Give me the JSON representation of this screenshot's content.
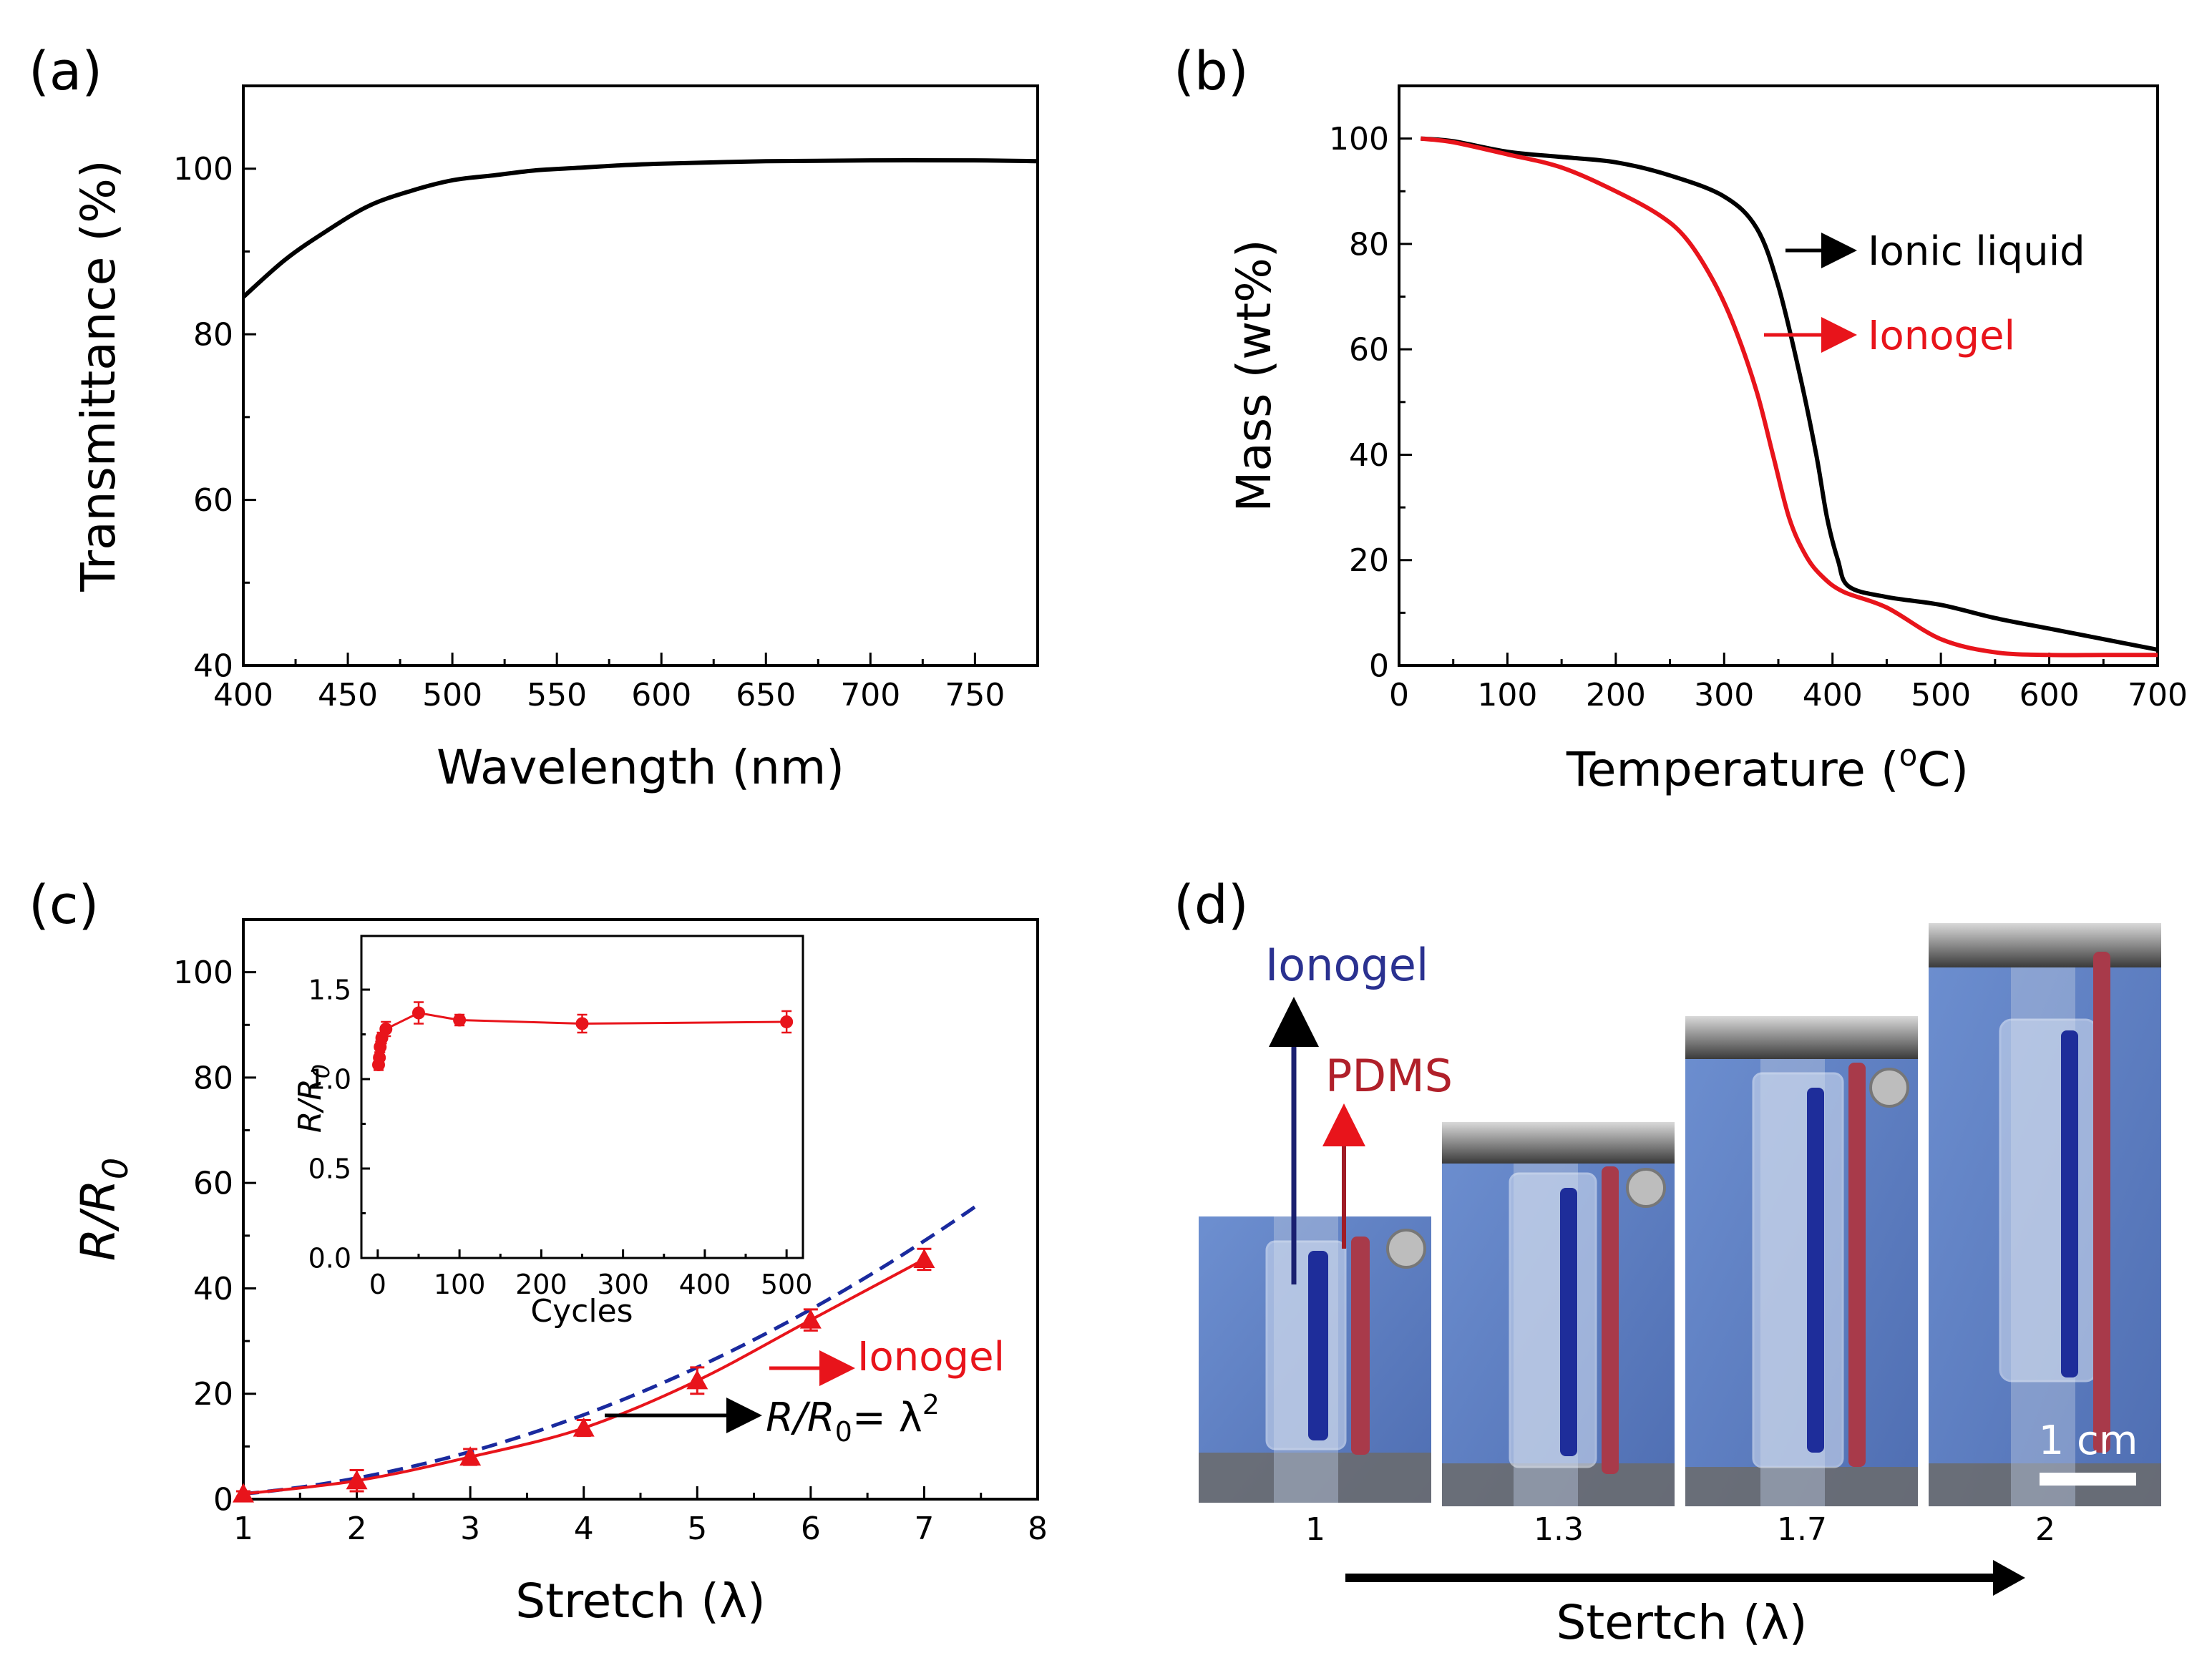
{
  "figure_labels": {
    "panel_a": "(a)",
    "panel_b": "(b)",
    "panel_c": "(c)",
    "panel_d": "(d)"
  },
  "colors": {
    "black": "#000000",
    "red": "#e8141b",
    "blue_dashed": "#1a2a9e",
    "ionogel_text": "#2a3190",
    "pdms_text": "#b0202a",
    "photo_bg": "#5d7fc4"
  },
  "chart_data": [
    {
      "id": "a",
      "type": "line",
      "title": "",
      "xlabel": "Wavelength (nm)",
      "ylabel": "Transmittance (%)",
      "xlim": [
        400,
        780
      ],
      "ylim": [
        40,
        110
      ],
      "xticks": [
        400,
        450,
        500,
        550,
        600,
        650,
        700,
        750
      ],
      "yticks": [
        40,
        60,
        80,
        100
      ],
      "series": [
        {
          "name": "Transmittance",
          "color": "#000000",
          "x": [
            400,
            420,
            440,
            460,
            480,
            500,
            520,
            540,
            560,
            580,
            600,
            650,
            700,
            750,
            780
          ],
          "y": [
            84.5,
            89,
            92.5,
            95.5,
            97.3,
            98.6,
            99.2,
            99.8,
            100.1,
            100.4,
            100.6,
            100.9,
            101,
            101,
            100.9
          ]
        }
      ]
    },
    {
      "id": "b",
      "type": "line",
      "title": "",
      "xlabel": "Temperature (",
      "xlabel_sup": "o",
      "xlabel_end": "C)",
      "ylabel": "Mass (wt%)",
      "xlim": [
        0,
        700
      ],
      "ylim": [
        0,
        110
      ],
      "xticks": [
        0,
        100,
        200,
        300,
        400,
        500,
        600,
        700
      ],
      "yticks": [
        0,
        20,
        40,
        60,
        80,
        100
      ],
      "legend": [
        {
          "label": "Ionic liquid",
          "color": "#000000"
        },
        {
          "label": "Ionogel",
          "color": "#e8141b"
        }
      ],
      "series": [
        {
          "name": "Ionic liquid",
          "color": "#000000",
          "x": [
            20,
            50,
            100,
            150,
            200,
            250,
            300,
            330,
            350,
            370,
            385,
            395,
            405,
            415,
            450,
            500,
            550,
            600,
            650,
            700
          ],
          "y": [
            100,
            99.5,
            97.5,
            96.5,
            95.5,
            93,
            89,
            83,
            72,
            55,
            40,
            28,
            20,
            15,
            13,
            11.5,
            9,
            7,
            5,
            3
          ]
        },
        {
          "name": "Ionogel",
          "color": "#e8141b",
          "x": [
            20,
            50,
            100,
            150,
            200,
            240,
            265,
            290,
            310,
            330,
            345,
            360,
            375,
            390,
            410,
            450,
            500,
            550,
            600,
            650,
            700
          ],
          "y": [
            100,
            99.3,
            97,
            94.5,
            90,
            85.5,
            81,
            73,
            64,
            52,
            40,
            28,
            21,
            17,
            14,
            11,
            5,
            2.5,
            2,
            2,
            2
          ]
        }
      ]
    },
    {
      "id": "c",
      "type": "line",
      "title": "",
      "xlabel": "Stretch (λ)",
      "ylabel": "R/R",
      "ylabel_sub": "0",
      "xlim": [
        1,
        8
      ],
      "ylim": [
        0,
        110
      ],
      "xticks": [
        1,
        2,
        3,
        4,
        5,
        6,
        7,
        8
      ],
      "yticks": [
        0,
        20,
        40,
        60,
        80,
        100
      ],
      "annotations": [
        {
          "label": "Ionogel",
          "color": "#e8141b"
        },
        {
          "label_main": "R/R",
          "label_sub": "0",
          "label_end": "= λ",
          "label_sup": "2",
          "color": "#000000"
        }
      ],
      "series": [
        {
          "name": "Ionogel",
          "color": "#e8141b",
          "marker": "triangle",
          "x": [
            1,
            2,
            3,
            4,
            5,
            6,
            7
          ],
          "y": [
            1,
            3.5,
            8,
            13.5,
            22.5,
            34,
            45.5
          ],
          "yerr": [
            0.5,
            2,
            1.5,
            1.5,
            2.5,
            2,
            2
          ]
        },
        {
          "name": "R/R0 = λ^2",
          "color": "#1a2a9e",
          "style": "dashed",
          "function": "x^2",
          "xrange": [
            1,
            7.5
          ]
        }
      ],
      "inset": {
        "xlabel": "Cycles",
        "ylabel": "R/R",
        "ylabel_sub": "0",
        "xlim": [
          -20,
          520
        ],
        "ylim": [
          0,
          1.8
        ],
        "xticks": [
          0,
          100,
          200,
          300,
          400,
          500
        ],
        "yticks": [
          0.0,
          0.5,
          1.0,
          1.5
        ],
        "ytick_labels": [
          "0.0",
          "0.5",
          "1.0",
          "1.5"
        ],
        "series": [
          {
            "name": "Ionogel cycles",
            "color": "#e8141b",
            "x": [
              1,
              2,
              3,
              5,
              10,
              50,
              100,
              250,
              500
            ],
            "y": [
              1.08,
              1.12,
              1.18,
              1.23,
              1.28,
              1.37,
              1.33,
              1.31,
              1.32
            ],
            "yerr": [
              0.03,
              0.03,
              0.03,
              0.03,
              0.04,
              0.06,
              0.03,
              0.05,
              0.06
            ]
          }
        ]
      }
    }
  ],
  "panel_d": {
    "ionogel_label": "Ionogel",
    "pdms_label": "PDMS",
    "scale_label": "1 cm",
    "stretch_labels": [
      "1",
      "1.3",
      "1.7",
      "2"
    ],
    "axis_label": "Stertch (λ)"
  }
}
